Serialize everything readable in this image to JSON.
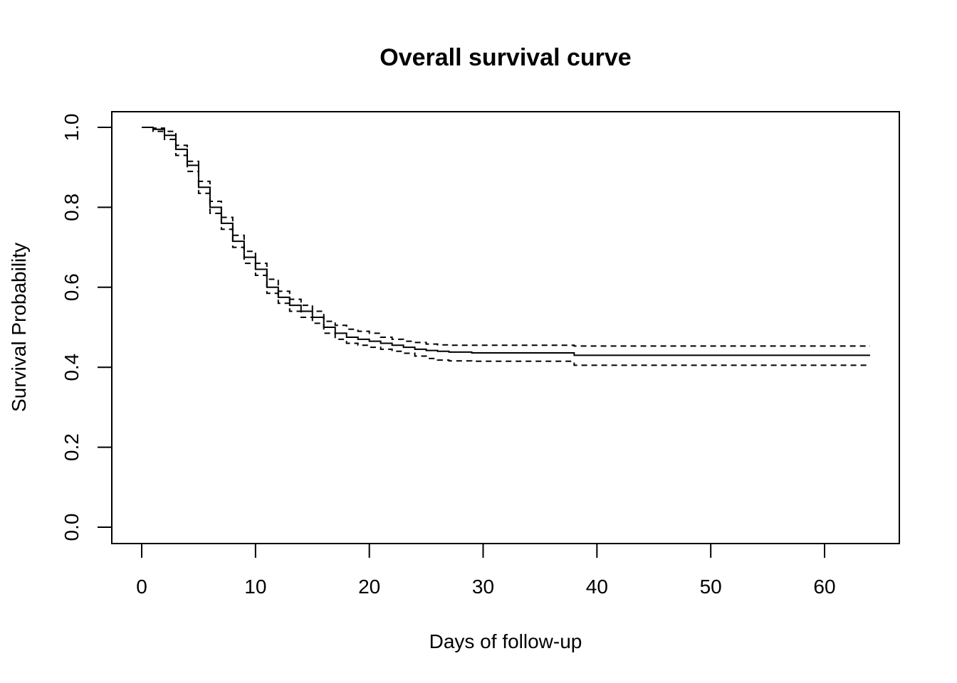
{
  "chart_data": {
    "type": "line",
    "title": "Overall survival curve",
    "xlabel": "Days of follow-up",
    "ylabel": "Survival Probability",
    "xlim": [
      0,
      64
    ],
    "ylim": [
      0,
      1
    ],
    "xticks": [
      "0",
      "10",
      "20",
      "30",
      "40",
      "50",
      "60"
    ],
    "yticks": [
      "0.0",
      "0.2",
      "0.4",
      "0.6",
      "0.8",
      "1.0"
    ],
    "grid": false,
    "legend": "none",
    "step": true,
    "series": [
      {
        "role": "estimate",
        "style": "solid",
        "x": [
          0,
          1,
          2,
          3,
          4,
          5,
          6,
          7,
          8,
          9,
          10,
          11,
          12,
          13,
          14,
          15,
          16,
          17,
          18,
          19,
          20,
          21,
          22,
          23,
          24,
          25,
          26,
          27,
          29,
          38,
          64
        ],
        "y": [
          1.0,
          0.995,
          0.98,
          0.945,
          0.905,
          0.85,
          0.8,
          0.76,
          0.715,
          0.675,
          0.645,
          0.6,
          0.575,
          0.555,
          0.54,
          0.525,
          0.5,
          0.485,
          0.475,
          0.47,
          0.465,
          0.46,
          0.455,
          0.45,
          0.445,
          0.442,
          0.44,
          0.438,
          0.436,
          0.43,
          0.43
        ]
      },
      {
        "role": "upper-95-ci",
        "style": "dashed",
        "x": [
          0,
          1,
          2,
          3,
          4,
          5,
          6,
          7,
          8,
          9,
          10,
          11,
          12,
          13,
          14,
          15,
          16,
          17,
          18,
          19,
          20,
          21,
          22,
          23,
          24,
          25,
          26,
          27,
          29,
          38,
          64
        ],
        "y": [
          1.0,
          0.998,
          0.99,
          0.955,
          0.915,
          0.865,
          0.815,
          0.775,
          0.73,
          0.69,
          0.66,
          0.62,
          0.59,
          0.57,
          0.555,
          0.54,
          0.515,
          0.505,
          0.495,
          0.49,
          0.485,
          0.475,
          0.47,
          0.465,
          0.462,
          0.458,
          0.456,
          0.455,
          0.455,
          0.453,
          0.453
        ]
      },
      {
        "role": "lower-95-ci",
        "style": "dashed",
        "x": [
          0,
          1,
          2,
          3,
          4,
          5,
          6,
          7,
          8,
          9,
          10,
          11,
          12,
          13,
          14,
          15,
          16,
          17,
          18,
          19,
          20,
          21,
          22,
          23,
          24,
          25,
          26,
          27,
          29,
          38,
          64
        ],
        "y": [
          1.0,
          0.99,
          0.97,
          0.93,
          0.89,
          0.835,
          0.785,
          0.745,
          0.7,
          0.66,
          0.63,
          0.585,
          0.56,
          0.54,
          0.525,
          0.51,
          0.485,
          0.47,
          0.46,
          0.455,
          0.45,
          0.445,
          0.44,
          0.435,
          0.428,
          0.422,
          0.418,
          0.416,
          0.415,
          0.405,
          0.405
        ]
      }
    ]
  }
}
